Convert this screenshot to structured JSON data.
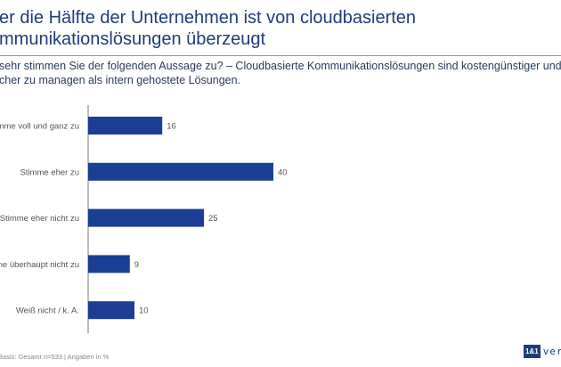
{
  "header": {
    "title_lines": [
      "er die Hälfte der Unternehmen ist von cloudbasierten",
      "mmunikationslösungen überzeugt"
    ],
    "question_lines": [
      "sehr stimmen Sie der folgenden Aussage zu? – Cloudbasierte Kommunikationslösungen sind kostengünstiger und",
      "cher zu managen als intern gehostete Lösungen."
    ]
  },
  "footer": {
    "note": "Basis: Gesamt n=533 | Angaben in %"
  },
  "logo": {
    "mark": "1&1",
    "text": "vers"
  },
  "colors": {
    "bar": "#1b3f94",
    "title": "#1f3c78"
  },
  "chart_data": {
    "type": "bar",
    "orientation": "horizontal",
    "categories": [
      "mme voll und ganz zu",
      "Stimme eher zu",
      "Stimme eher nicht zu",
      "ne überhaupt nicht zu",
      "Weiß nicht / k. A."
    ],
    "values": [
      16,
      40,
      25,
      9,
      10
    ],
    "unit": "%",
    "grid": false,
    "legend": "none"
  }
}
